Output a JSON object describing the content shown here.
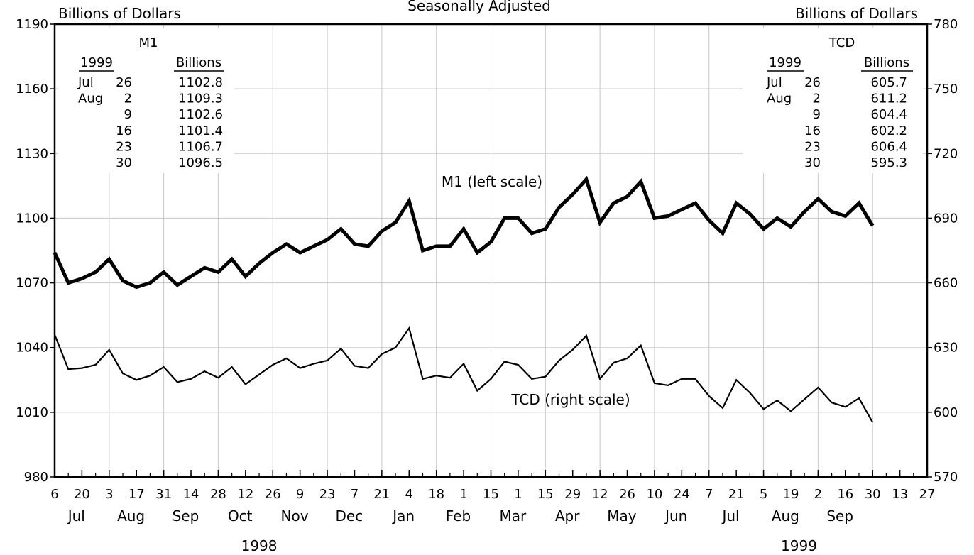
{
  "chart_data": {
    "type": "line",
    "subtitle": "Seasonally Adjusted",
    "left_axis_title": "Billions of Dollars",
    "right_axis_title": "Billions of Dollars",
    "left_ylim": [
      980,
      1190
    ],
    "right_ylim": [
      570,
      780
    ],
    "left_ticks": [
      "980",
      "1010",
      "1040",
      "1070",
      "1100",
      "1130",
      "1160",
      "1190"
    ],
    "right_ticks": [
      "570",
      "600",
      "630",
      "660",
      "690",
      "720",
      "750",
      "780"
    ],
    "x_day_ticks": [
      "6",
      "20",
      "3",
      "17",
      "31",
      "14",
      "28",
      "12",
      "26",
      "9",
      "23",
      "7",
      "21",
      "4",
      "18",
      "1",
      "15",
      "1",
      "15",
      "29",
      "12",
      "26",
      "10",
      "24",
      "7",
      "21",
      "5",
      "19",
      "2",
      "16",
      "30",
      "13",
      "27"
    ],
    "x_month_labels": [
      "Jul",
      "Aug",
      "Sep",
      "Oct",
      "Nov",
      "Dec",
      "Jan",
      "Feb",
      "Mar",
      "Apr",
      "May",
      "Jun",
      "Jul",
      "Aug",
      "Sep"
    ],
    "x_year_labels": [
      "1998",
      "1999"
    ],
    "grid": true,
    "series": [
      {
        "name": "M1 (left scale)",
        "axis": "left",
        "values": [
          1084,
          1070,
          1072,
          1075,
          1081,
          1071,
          1068,
          1070,
          1075,
          1069,
          1073,
          1077,
          1075,
          1081,
          1073,
          1079,
          1084,
          1088,
          1084,
          1087,
          1090,
          1095,
          1088,
          1087,
          1094,
          1098,
          1108,
          1085,
          1087,
          1087,
          1095,
          1084,
          1089,
          1100,
          1100,
          1093,
          1095,
          1105,
          1111,
          1118,
          1098,
          1107,
          1110,
          1117,
          1100,
          1101,
          1104,
          1107,
          1099,
          1093,
          1107,
          1102,
          1095,
          1100,
          1096,
          1103,
          1109,
          1103,
          1101,
          1107,
          1096.5
        ]
      },
      {
        "name": "TCD (right scale)",
        "axis": "right",
        "values": [
          636,
          620,
          620.5,
          622,
          629,
          618,
          615,
          617,
          621,
          614,
          615.5,
          619,
          616,
          621,
          613,
          617.5,
          622,
          625,
          620.5,
          622.5,
          624,
          629.5,
          621.5,
          620.5,
          627,
          630,
          639,
          615.5,
          617,
          616,
          622.5,
          610,
          615.5,
          623.5,
          622,
          615.5,
          616.5,
          624,
          629,
          635.5,
          615.5,
          623,
          625,
          631,
          613.5,
          612.5,
          615.5,
          615.5,
          607.5,
          602,
          615,
          609,
          601.5,
          605.5,
          600.5,
          606,
          611.5,
          604.5,
          602.5,
          606.5,
          595.3
        ]
      }
    ],
    "m1_table": {
      "title": "M1",
      "year_header": "1999",
      "value_header": "Billions",
      "rows": [
        {
          "month": "Jul",
          "day": "26",
          "value": "1102.8"
        },
        {
          "month": "Aug",
          "day": "2",
          "value": "1109.3"
        },
        {
          "month": "",
          "day": "9",
          "value": "1102.6"
        },
        {
          "month": "",
          "day": "16",
          "value": "1101.4"
        },
        {
          "month": "",
          "day": "23",
          "value": "1106.7"
        },
        {
          "month": "",
          "day": "30",
          "value": "1096.5"
        }
      ]
    },
    "tcd_table": {
      "title": "TCD",
      "year_header": "1999",
      "value_header": "Billions",
      "rows": [
        {
          "month": "Jul",
          "day": "26",
          "value": "605.7"
        },
        {
          "month": "Aug",
          "day": "2",
          "value": "611.2"
        },
        {
          "month": "",
          "day": "9",
          "value": "604.4"
        },
        {
          "month": "",
          "day": "16",
          "value": "602.2"
        },
        {
          "month": "",
          "day": "23",
          "value": "606.4"
        },
        {
          "month": "",
          "day": "30",
          "value": "595.3"
        }
      ]
    }
  }
}
